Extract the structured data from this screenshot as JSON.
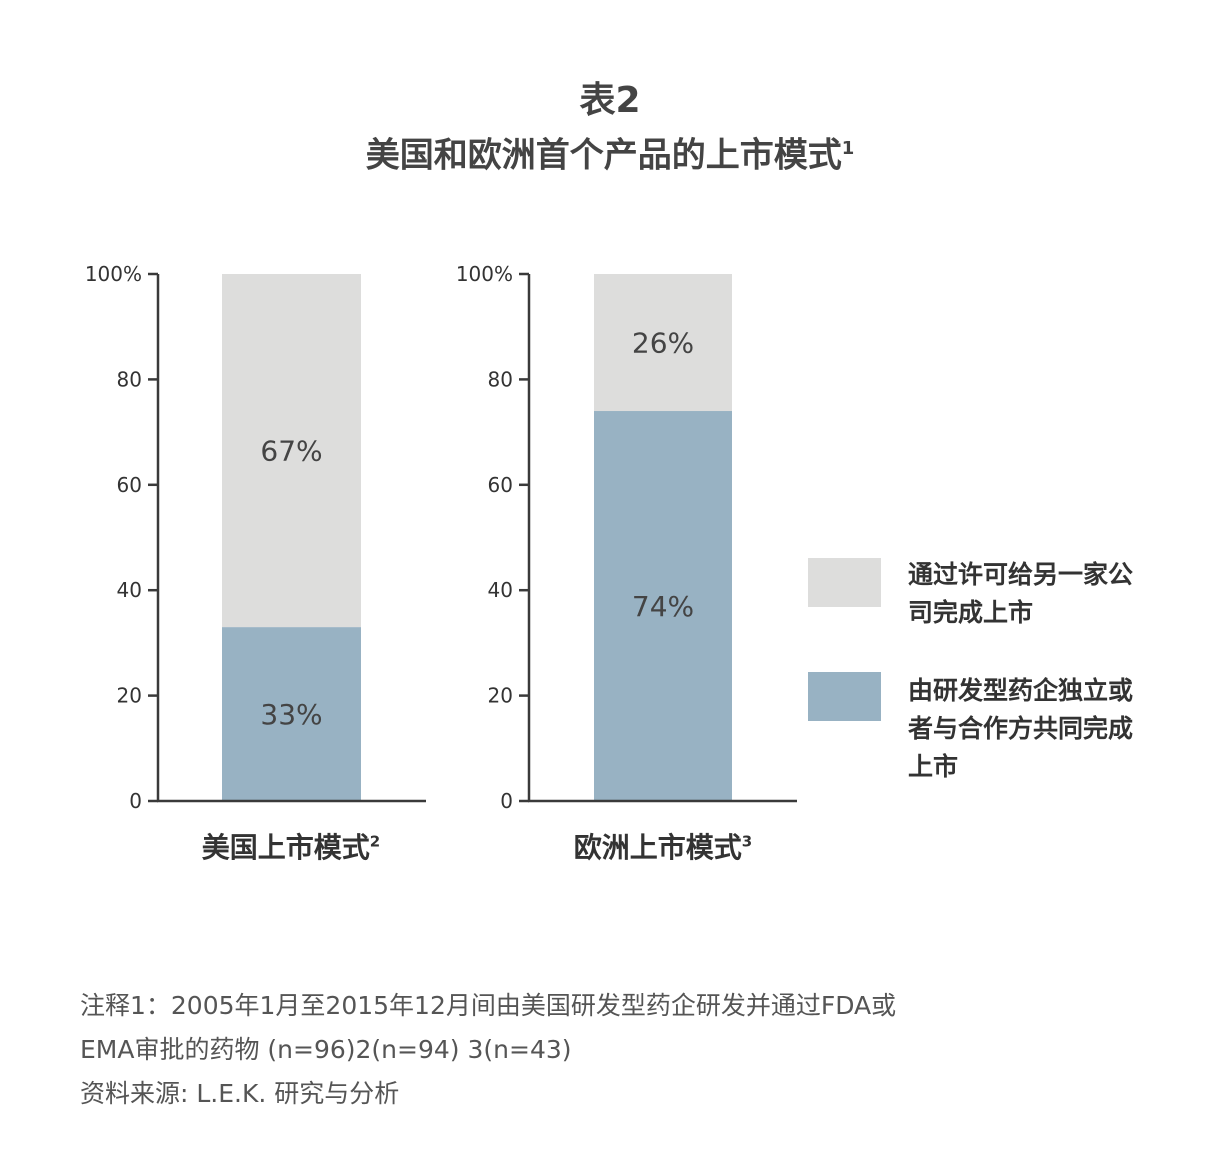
{
  "title": {
    "line1": "表2",
    "line2": "美国和欧洲首个产品的上市模式",
    "line2_sup": "1"
  },
  "colors": {
    "licensed": "#dddddc",
    "independent": "#98b2c3",
    "axis": "#3a3a3a"
  },
  "chart_data": [
    {
      "type": "bar",
      "stacked": true,
      "category": "美国上市模式",
      "category_sup": "2",
      "ylim": [
        0,
        100
      ],
      "yticks": [
        0,
        20,
        40,
        60,
        80,
        100
      ],
      "ytick_labels": [
        "0",
        "20",
        "40",
        "60",
        "80",
        "100%"
      ],
      "series": [
        {
          "name": "由研发型药企独立或者与合作方共同完成上市",
          "value": 33,
          "label": "33%"
        },
        {
          "name": "通过许可给另一家公司完成上市",
          "value": 67,
          "label": "67%"
        }
      ]
    },
    {
      "type": "bar",
      "stacked": true,
      "category": "欧洲上市模式",
      "category_sup": "3",
      "ylim": [
        0,
        100
      ],
      "yticks": [
        0,
        20,
        40,
        60,
        80,
        100
      ],
      "ytick_labels": [
        "0",
        "20",
        "40",
        "60",
        "80",
        "100%"
      ],
      "series": [
        {
          "name": "由研发型药企独立或者与合作方共同完成上市",
          "value": 74,
          "label": "74%"
        },
        {
          "name": "通过许可给另一家公司完成上市",
          "value": 26,
          "label": "26%"
        }
      ]
    }
  ],
  "legend": [
    {
      "label": "通过许可给另一家公司完成上市",
      "color_key": "licensed"
    },
    {
      "label": "由研发型药企独立或者与合作方共同完成上市",
      "color_key": "independent"
    }
  ],
  "notes": {
    "line1": "注释1：2005年1月至2015年12月间由美国研发型药企研发并通过FDA或",
    "line2": "EMA审批的药物 (n=96)2(n=94) 3(n=43)",
    "line3": "资料来源: L.E.K. 研究与分析"
  }
}
